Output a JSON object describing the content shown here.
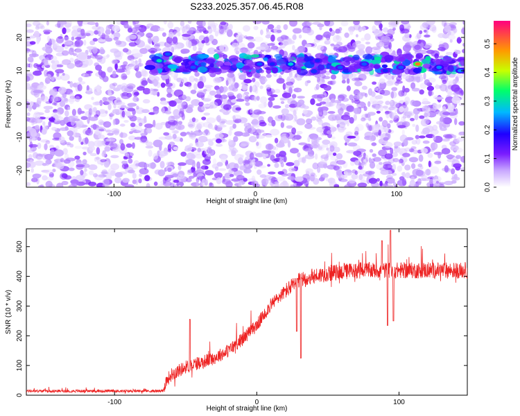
{
  "title": "S233.2025.357.06.45.R08",
  "chart_data": [
    {
      "type": "heatmap",
      "xlabel": "Height of straight line (km)",
      "ylabel": "Frequency (Hz)",
      "xlim": [
        -162,
        148
      ],
      "ylim": [
        -25,
        25
      ],
      "xticks": [
        -100,
        0,
        100
      ],
      "yticks": [
        -20,
        -10,
        0,
        10,
        20
      ],
      "colorbar": {
        "label": "Normalized spectral amplitude",
        "range": [
          0,
          0.58
        ],
        "ticks": [
          0.0,
          0.1,
          0.2,
          0.3,
          0.4,
          0.5
        ],
        "tick_labels": [
          "0.0",
          "0.1",
          "0.2",
          "0.3",
          "0.4",
          "0.5"
        ]
      },
      "signal_band": {
        "frequency_hz": 12,
        "x_start_km": -75,
        "x_end_km": 148,
        "peak_amplitude": 0.55,
        "peak_x_km": 115
      },
      "background_amplitude": [
        0.02,
        0.12
      ],
      "grid": false
    },
    {
      "type": "line",
      "xlabel": "Height of straight line (km)",
      "ylabel": "SNR (10 * v/v)",
      "xlim": [
        -162,
        148
      ],
      "ylim": [
        0,
        560
      ],
      "xticks": [
        -100,
        0,
        100
      ],
      "yticks": [
        0,
        100,
        200,
        300,
        400,
        500
      ],
      "color": "#ee2222",
      "grid": false,
      "series": [
        {
          "x": [
            -162,
            -100,
            -66,
            -64,
            -60,
            -50,
            -40,
            -30,
            -20,
            -10,
            0,
            10,
            20,
            30,
            40,
            50,
            60,
            70,
            80,
            90,
            100,
            110,
            120,
            130,
            140,
            148
          ],
          "values": [
            14,
            14,
            14,
            45,
            70,
            95,
            110,
            125,
            150,
            190,
            235,
            305,
            350,
            385,
            400,
            410,
            415,
            420,
            420,
            420,
            420,
            420,
            420,
            420,
            420,
            420
          ]
        }
      ],
      "noise_amplitude": [
        12,
        90
      ],
      "dips": [
        {
          "x": 28,
          "value": 215
        },
        {
          "x": 31,
          "value": 125
        },
        {
          "x": 92,
          "value": 235
        },
        {
          "x": 96,
          "value": 250
        }
      ],
      "spikes": [
        {
          "x": -47,
          "value": 255
        },
        {
          "x": 88,
          "value": 520
        },
        {
          "x": 94,
          "value": 555
        }
      ]
    }
  ]
}
